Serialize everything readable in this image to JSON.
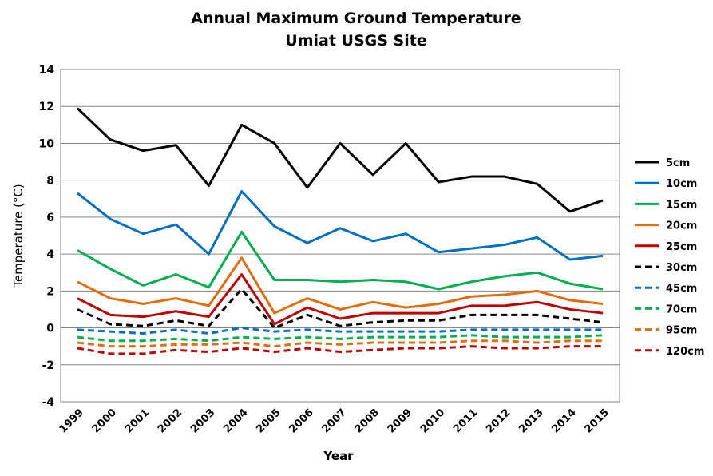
{
  "chart_data": {
    "type": "line",
    "title": "Annual Maximum Ground Temperature",
    "subtitle": "Umiat USGS Site",
    "xlabel": "Year",
    "ylabel": "Temperature (°C)",
    "ylim": [
      -4,
      14
    ],
    "yticks": [
      "-4",
      "-2",
      "0",
      "2",
      "4",
      "6",
      "8",
      "10",
      "12",
      "14"
    ],
    "grid": true,
    "legend": "right",
    "categories": [
      "1999",
      "2000",
      "2001",
      "2002",
      "2003",
      "2004",
      "2005",
      "2006",
      "2007",
      "2008",
      "2009",
      "2010",
      "2011",
      "2012",
      "2013",
      "2014",
      "2015"
    ],
    "series": [
      {
        "name": "5cm",
        "color": "#000000",
        "dash": false,
        "values": [
          11.9,
          10.2,
          9.6,
          9.9,
          7.7,
          11.0,
          10.0,
          7.6,
          10.0,
          8.3,
          10.0,
          7.9,
          8.2,
          8.2,
          7.8,
          6.3,
          6.9
        ]
      },
      {
        "name": "10cm",
        "color": "#0070c0",
        "dash": false,
        "values": [
          7.3,
          5.9,
          5.1,
          5.6,
          4.0,
          7.4,
          5.5,
          4.6,
          5.4,
          4.7,
          5.1,
          4.1,
          4.3,
          4.5,
          4.9,
          3.7,
          3.9
        ]
      },
      {
        "name": "15cm",
        "color": "#00b050",
        "dash": false,
        "values": [
          4.2,
          3.2,
          2.3,
          2.9,
          2.2,
          5.2,
          2.6,
          2.6,
          2.5,
          2.6,
          2.5,
          2.1,
          2.5,
          2.8,
          3.0,
          2.4,
          2.1
        ]
      },
      {
        "name": "20cm",
        "color": "#e46c0a",
        "dash": false,
        "values": [
          2.5,
          1.6,
          1.3,
          1.6,
          1.2,
          3.8,
          0.8,
          1.6,
          1.0,
          1.4,
          1.1,
          1.3,
          1.7,
          1.8,
          2.0,
          1.5,
          1.3
        ]
      },
      {
        "name": "25cm",
        "color": "#c00000",
        "dash": false,
        "values": [
          1.6,
          0.7,
          0.6,
          0.9,
          0.6,
          2.9,
          0.2,
          1.1,
          0.5,
          0.8,
          0.8,
          0.8,
          1.2,
          1.2,
          1.4,
          1.0,
          0.8
        ]
      },
      {
        "name": "30cm",
        "color": "#000000",
        "dash": true,
        "values": [
          1.0,
          0.2,
          0.1,
          0.4,
          0.1,
          2.1,
          0.0,
          0.7,
          0.1,
          0.3,
          0.4,
          0.4,
          0.7,
          0.7,
          0.7,
          0.5,
          0.3
        ]
      },
      {
        "name": "45cm",
        "color": "#0070c0",
        "dash": true,
        "values": [
          -0.1,
          -0.2,
          -0.3,
          -0.1,
          -0.3,
          0.0,
          -0.2,
          -0.1,
          -0.2,
          -0.2,
          -0.2,
          -0.2,
          -0.1,
          -0.1,
          -0.1,
          -0.1,
          -0.1
        ]
      },
      {
        "name": "70cm",
        "color": "#00b050",
        "dash": true,
        "values": [
          -0.5,
          -0.7,
          -0.7,
          -0.6,
          -0.7,
          -0.5,
          -0.6,
          -0.5,
          -0.6,
          -0.5,
          -0.5,
          -0.5,
          -0.4,
          -0.5,
          -0.5,
          -0.5,
          -0.4
        ]
      },
      {
        "name": "95cm",
        "color": "#e46c0a",
        "dash": true,
        "values": [
          -0.8,
          -1.0,
          -1.0,
          -0.9,
          -0.9,
          -0.8,
          -1.0,
          -0.8,
          -0.9,
          -0.8,
          -0.8,
          -0.8,
          -0.7,
          -0.7,
          -0.8,
          -0.7,
          -0.7
        ]
      },
      {
        "name": "120cm",
        "color": "#c00000",
        "dash": true,
        "values": [
          -1.1,
          -1.4,
          -1.4,
          -1.2,
          -1.3,
          -1.1,
          -1.3,
          -1.1,
          -1.3,
          -1.2,
          -1.1,
          -1.1,
          -1.0,
          -1.1,
          -1.1,
          -1.0,
          -1.0
        ]
      }
    ]
  }
}
